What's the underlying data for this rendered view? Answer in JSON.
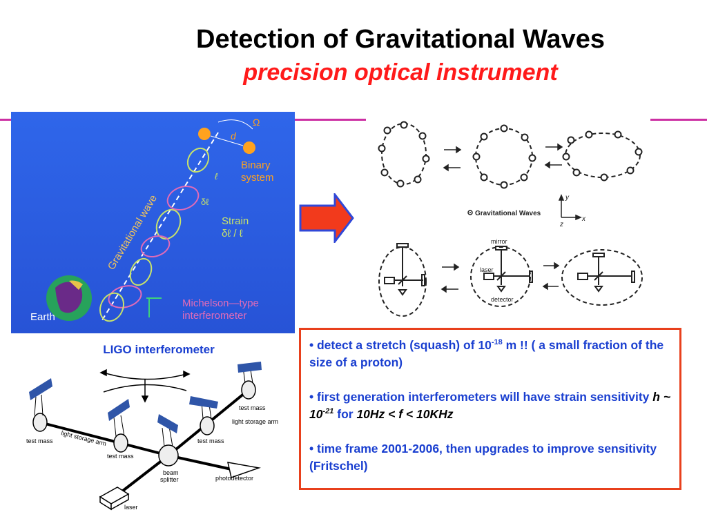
{
  "slide": {
    "title": "Detection of Gravitational Waves",
    "subtitle": "precision optical instrument"
  },
  "colors": {
    "accent_red": "#ff1a1a",
    "rule_magenta": "#cc2fa3",
    "label_blue": "#1a3fd0",
    "box_border": "#e8401c",
    "panel_blue": "#2e5fe6"
  },
  "blue_panel": {
    "omega": "Ω",
    "d": "d",
    "binary_line1": "Binary",
    "binary_line2": "system",
    "gravitational_wave": "Gravitational wave",
    "ell": "ℓ",
    "dell": "δℓ",
    "strain_line1": "Strain",
    "strain_line2": "δℓ / ℓ",
    "michelson_line1": "Michelson—type",
    "michelson_line2": "interferometer",
    "earth": "Earth"
  },
  "gw_figure": {
    "caption": "Gravitational Waves",
    "axis_y": "y",
    "axis_x": "x",
    "axis_z": "z",
    "mirror": "mirror",
    "laser": "laser",
    "detector": "detector"
  },
  "ligo": {
    "label": "LIGO interferometer",
    "test_mass_1": "test mass",
    "test_mass_2": "test mass",
    "test_mass_3": "test mass",
    "test_mass_4": "test mass",
    "storage_arm_1": "light storage arm",
    "storage_arm_2": "light storage arm",
    "beam_splitter_line1": "beam",
    "beam_splitter_line2": "splitter",
    "photodetector": "photodetector",
    "laser": "laser"
  },
  "bullets": {
    "b1_prefix": "• detect a stretch (squash) of 10",
    "b1_exp": "-18",
    "b1_rest": " m !!  ( a small fraction of the size of a proton)",
    "b2_prefix": "• first generation interferometers will have strain sensitivity ",
    "b2_h": "h ~ 10",
    "b2_exp": "-21",
    "b2_for": " for ",
    "b2_range": "10Hz < f < 10KHz",
    "b3": "• time frame 2001-2006, then upgrades to improve sensitivity (Fritschel)"
  }
}
